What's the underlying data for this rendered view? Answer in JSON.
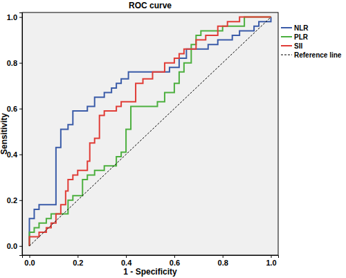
{
  "chart_data": {
    "type": "line",
    "title": "ROC curve",
    "x_label": "1 - Specificity",
    "y_label": "Sensitivity",
    "xlim": [
      -0.03,
      1.03
    ],
    "ylim": [
      -0.04,
      1.02
    ],
    "xticks": [
      {
        "value": 0,
        "label": "0.0"
      },
      0.2,
      0.4,
      0.6,
      0.8,
      {
        "value": 1,
        "label": "1.0"
      }
    ],
    "yticks": [
      {
        "value": 0,
        "label": "0.0"
      },
      0.2,
      0.4,
      0.6,
      0.8,
      {
        "value": 1,
        "label": "1.0"
      }
    ],
    "legend": "right",
    "series": [
      {
        "name": "NLR",
        "color": "#3a5ba8",
        "line_style": "solid",
        "x": [
          0,
          0,
          0.02,
          0.02,
          0.04,
          0.04,
          0.11,
          0.11,
          0.13,
          0.13,
          0.16,
          0.16,
          0.18,
          0.18,
          0.24,
          0.24,
          0.27,
          0.27,
          0.31,
          0.31,
          0.34,
          0.34,
          0.36,
          0.36,
          0.38,
          0.38,
          0.41,
          0.41,
          0.58,
          0.58,
          0.62,
          0.62,
          0.65,
          0.65,
          0.74,
          0.74,
          0.78,
          0.78,
          0.84,
          0.84,
          0.87,
          0.87,
          0.93,
          0.93,
          0.95,
          0.95,
          1,
          1
        ],
        "values": [
          0,
          0.12,
          0.12,
          0.16,
          0.16,
          0.18,
          0.18,
          0.43,
          0.43,
          0.51,
          0.51,
          0.53,
          0.53,
          0.59,
          0.59,
          0.61,
          0.61,
          0.65,
          0.65,
          0.67,
          0.67,
          0.69,
          0.69,
          0.71,
          0.71,
          0.73,
          0.73,
          0.76,
          0.76,
          0.78,
          0.78,
          0.82,
          0.82,
          0.86,
          0.86,
          0.88,
          0.88,
          0.9,
          0.9,
          0.92,
          0.92,
          0.94,
          0.94,
          0.96,
          0.96,
          0.98,
          0.98,
          1
        ]
      },
      {
        "name": "PLR",
        "color": "#4caf3e",
        "line_style": "solid",
        "x": [
          0,
          0,
          0.02,
          0.02,
          0.04,
          0.04,
          0.07,
          0.07,
          0.09,
          0.09,
          0.16,
          0.16,
          0.18,
          0.18,
          0.22,
          0.22,
          0.24,
          0.24,
          0.27,
          0.27,
          0.31,
          0.31,
          0.36,
          0.36,
          0.38,
          0.38,
          0.4,
          0.4,
          0.42,
          0.42,
          0.53,
          0.53,
          0.56,
          0.56,
          0.6,
          0.6,
          0.62,
          0.62,
          0.64,
          0.64,
          0.67,
          0.67,
          0.69,
          0.69,
          0.71,
          0.71,
          0.8,
          0.8,
          0.89,
          0.89,
          1
        ],
        "values": [
          0,
          0.06,
          0.06,
          0.08,
          0.08,
          0.1,
          0.1,
          0.12,
          0.12,
          0.14,
          0.14,
          0.2,
          0.2,
          0.22,
          0.22,
          0.29,
          0.29,
          0.31,
          0.31,
          0.33,
          0.33,
          0.35,
          0.35,
          0.39,
          0.39,
          0.41,
          0.41,
          0.51,
          0.51,
          0.61,
          0.61,
          0.63,
          0.63,
          0.67,
          0.67,
          0.71,
          0.71,
          0.76,
          0.76,
          0.8,
          0.8,
          0.88,
          0.88,
          0.92,
          0.92,
          0.94,
          0.94,
          0.96,
          0.96,
          1,
          1
        ]
      },
      {
        "name": "SII",
        "color": "#e03c36",
        "line_style": "solid",
        "x": [
          0,
          0,
          0.04,
          0.04,
          0.07,
          0.07,
          0.09,
          0.09,
          0.11,
          0.11,
          0.13,
          0.13,
          0.15,
          0.15,
          0.16,
          0.16,
          0.18,
          0.18,
          0.2,
          0.2,
          0.24,
          0.24,
          0.25,
          0.25,
          0.27,
          0.27,
          0.29,
          0.29,
          0.31,
          0.31,
          0.36,
          0.36,
          0.38,
          0.38,
          0.44,
          0.44,
          0.47,
          0.47,
          0.51,
          0.51,
          0.56,
          0.56,
          0.6,
          0.6,
          0.62,
          0.62,
          0.64,
          0.64,
          0.69,
          0.69,
          0.73,
          0.73,
          0.78,
          0.78,
          0.82,
          0.82,
          0.87,
          0.87,
          1
        ],
        "values": [
          0,
          0.04,
          0.04,
          0.06,
          0.06,
          0.08,
          0.08,
          0.1,
          0.1,
          0.14,
          0.14,
          0.18,
          0.18,
          0.24,
          0.24,
          0.29,
          0.29,
          0.31,
          0.31,
          0.33,
          0.33,
          0.37,
          0.37,
          0.45,
          0.45,
          0.47,
          0.47,
          0.57,
          0.57,
          0.59,
          0.59,
          0.61,
          0.61,
          0.63,
          0.63,
          0.71,
          0.71,
          0.73,
          0.73,
          0.76,
          0.76,
          0.8,
          0.8,
          0.82,
          0.82,
          0.84,
          0.84,
          0.86,
          0.86,
          0.9,
          0.9,
          0.92,
          0.92,
          0.96,
          0.96,
          0.98,
          0.98,
          1,
          1
        ]
      },
      {
        "name": "Reference line",
        "color": "#000000",
        "line_style": "dashed",
        "x": [
          0,
          1
        ],
        "values": [
          0,
          1
        ]
      }
    ]
  }
}
